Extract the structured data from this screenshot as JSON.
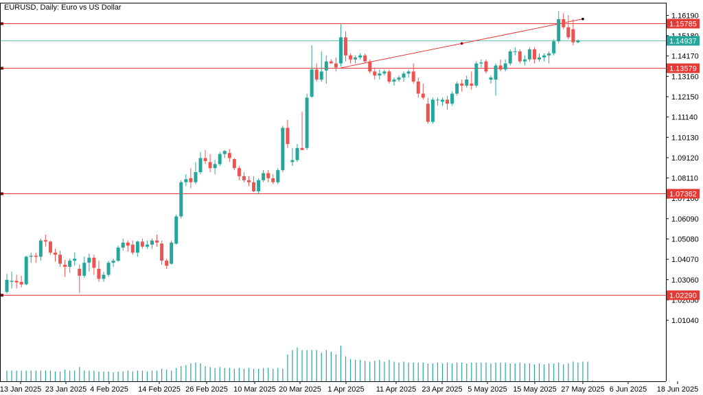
{
  "window": {
    "title": "EURUSD, Daily:  Euro vs US Dollar"
  },
  "chart_data": {
    "type": "candlestick",
    "symbol": "EURUSD",
    "timeframe": "Daily",
    "description": "Euro vs US Dollar",
    "y_range": [
      1.0002,
      1.1651
    ],
    "y_ticks": [
      "1.16190",
      "1.15180",
      "1.14170",
      "1.13160",
      "1.12150",
      "1.11140",
      "1.10130",
      "1.09120",
      "1.08110",
      "1.07100",
      "1.06090",
      "1.05080",
      "1.04070",
      "1.03060",
      "1.02050",
      "1.01040"
    ],
    "x_labels": [
      "13 Jan 2025",
      "23 Jan 2025",
      "4 Feb 2025",
      "14 Feb 2025",
      "26 Feb 2025",
      "10 Mar 2025",
      "20 Mar 2025",
      "1 Apr 2025",
      "11 Apr 2025",
      "23 Apr 2025",
      "5 May 2025",
      "15 May 2025",
      "27 May 2025",
      "6 Jun 2025",
      "18 Jun 2025"
    ],
    "colors": {
      "bull": "#26a69a",
      "bear": "#ef5350",
      "level": "#e53935",
      "current": "#26a69a",
      "volume": "#26a69a",
      "axis": "#000000"
    },
    "current_price": {
      "label": "1.14937",
      "value": 1.14937
    },
    "levels": [
      {
        "label": "1.15785",
        "value": 1.15785
      },
      {
        "label": "1.13579",
        "value": 1.13579
      },
      {
        "label": "1.07362",
        "value": 1.07362
      },
      {
        "label": "1.02290",
        "value": 1.0229
      }
    ],
    "trendline": {
      "from": {
        "bar": 69,
        "price": 1.1358
      },
      "to": {
        "bar": 119,
        "price": 1.1601
      }
    },
    "candles": [
      {
        "o": 1.0245,
        "h": 1.0335,
        "l": 1.0238,
        "c": 1.0305
      },
      {
        "o": 1.0295,
        "h": 1.0345,
        "l": 1.0262,
        "c": 1.03
      },
      {
        "o": 1.03,
        "h": 1.033,
        "l": 1.0262,
        "c": 1.0292
      },
      {
        "o": 1.0295,
        "h": 1.0325,
        "l": 1.0268,
        "c": 1.0282
      },
      {
        "o": 1.0283,
        "h": 1.0425,
        "l": 1.0278,
        "c": 1.042
      },
      {
        "o": 1.042,
        "h": 1.044,
        "l": 1.039,
        "c": 1.0425
      },
      {
        "o": 1.0425,
        "h": 1.044,
        "l": 1.039,
        "c": 1.042
      },
      {
        "o": 1.042,
        "h": 1.051,
        "l": 1.04,
        "c": 1.05
      },
      {
        "o": 1.0502,
        "h": 1.053,
        "l": 1.047,
        "c": 1.0495
      },
      {
        "o": 1.0495,
        "h": 1.05,
        "l": 1.043,
        "c": 1.044
      },
      {
        "o": 1.044,
        "h": 1.046,
        "l": 1.0395,
        "c": 1.043
      },
      {
        "o": 1.043,
        "h": 1.045,
        "l": 1.037,
        "c": 1.0385
      },
      {
        "o": 1.038,
        "h": 1.0405,
        "l": 1.032,
        "c": 1.037
      },
      {
        "o": 1.037,
        "h": 1.041,
        "l": 1.034,
        "c": 1.04
      },
      {
        "o": 1.04,
        "h": 1.044,
        "l": 1.0375,
        "c": 1.041
      },
      {
        "o": 1.036,
        "h": 1.038,
        "l": 1.024,
        "c": 1.0325
      },
      {
        "o": 1.0325,
        "h": 1.042,
        "l": 1.0315,
        "c": 1.039
      },
      {
        "o": 1.039,
        "h": 1.0435,
        "l": 1.0345,
        "c": 1.0415
      },
      {
        "o": 1.0415,
        "h": 1.043,
        "l": 1.033,
        "c": 1.0365
      },
      {
        "o": 1.036,
        "h": 1.04,
        "l": 1.0295,
        "c": 1.031
      },
      {
        "o": 1.031,
        "h": 1.0345,
        "l": 1.0295,
        "c": 1.033
      },
      {
        "o": 1.033,
        "h": 1.04,
        "l": 1.032,
        "c": 1.039
      },
      {
        "o": 1.039,
        "h": 1.041,
        "l": 1.037,
        "c": 1.04
      },
      {
        "o": 1.04,
        "h": 1.0475,
        "l": 1.0395,
        "c": 1.0465
      },
      {
        "o": 1.0465,
        "h": 1.051,
        "l": 1.045,
        "c": 1.049
      },
      {
        "o": 1.049,
        "h": 1.05,
        "l": 1.0445,
        "c": 1.0475
      },
      {
        "o": 1.048,
        "h": 1.05,
        "l": 1.043,
        "c": 1.044
      },
      {
        "o": 1.044,
        "h": 1.05,
        "l": 1.042,
        "c": 1.0495
      },
      {
        "o": 1.0495,
        "h": 1.051,
        "l": 1.046,
        "c": 1.047
      },
      {
        "o": 1.047,
        "h": 1.05,
        "l": 1.046,
        "c": 1.048
      },
      {
        "o": 1.048,
        "h": 1.051,
        "l": 1.046,
        "c": 1.05
      },
      {
        "o": 1.05,
        "h": 1.053,
        "l": 1.047,
        "c": 1.049
      },
      {
        "o": 1.0485,
        "h": 1.05,
        "l": 1.038,
        "c": 1.04
      },
      {
        "o": 1.04,
        "h": 1.041,
        "l": 1.036,
        "c": 1.0375
      },
      {
        "o": 1.0385,
        "h": 1.05,
        "l": 1.038,
        "c": 1.049
      },
      {
        "o": 1.0485,
        "h": 1.063,
        "l": 1.048,
        "c": 1.062
      },
      {
        "o": 1.062,
        "h": 1.08,
        "l": 1.061,
        "c": 1.079
      },
      {
        "o": 1.079,
        "h": 1.083,
        "l": 1.077,
        "c": 1.0805
      },
      {
        "o": 1.081,
        "h": 1.086,
        "l": 1.076,
        "c": 1.079
      },
      {
        "o": 1.079,
        "h": 1.089,
        "l": 1.078,
        "c": 1.084
      },
      {
        "o": 1.084,
        "h": 1.094,
        "l": 1.083,
        "c": 1.091
      },
      {
        "o": 1.091,
        "h": 1.095,
        "l": 1.088,
        "c": 1.0895
      },
      {
        "o": 1.089,
        "h": 1.093,
        "l": 1.084,
        "c": 1.086
      },
      {
        "o": 1.086,
        "h": 1.09,
        "l": 1.083,
        "c": 1.088
      },
      {
        "o": 1.088,
        "h": 1.094,
        "l": 1.087,
        "c": 1.093
      },
      {
        "o": 1.093,
        "h": 1.095,
        "l": 1.091,
        "c": 1.0945
      },
      {
        "o": 1.0935,
        "h": 1.0955,
        "l": 1.089,
        "c": 1.091
      },
      {
        "o": 1.0905,
        "h": 1.091,
        "l": 1.085,
        "c": 1.086
      },
      {
        "o": 1.086,
        "h": 1.087,
        "l": 1.08,
        "c": 1.082
      },
      {
        "o": 1.082,
        "h": 1.084,
        "l": 1.079,
        "c": 1.08
      },
      {
        "o": 1.08,
        "h": 1.082,
        "l": 1.077,
        "c": 1.079
      },
      {
        "o": 1.079,
        "h": 1.082,
        "l": 1.074,
        "c": 1.0745
      },
      {
        "o": 1.0745,
        "h": 1.081,
        "l": 1.0735,
        "c": 1.08
      },
      {
        "o": 1.08,
        "h": 1.085,
        "l": 1.079,
        "c": 1.0835
      },
      {
        "o": 1.0835,
        "h": 1.085,
        "l": 1.079,
        "c": 1.081
      },
      {
        "o": 1.081,
        "h": 1.083,
        "l": 1.078,
        "c": 1.079
      },
      {
        "o": 1.079,
        "h": 1.086,
        "l": 1.078,
        "c": 1.085
      },
      {
        "o": 1.085,
        "h": 1.107,
        "l": 1.084,
        "c": 1.106
      },
      {
        "o": 1.106,
        "h": 1.11,
        "l": 1.096,
        "c": 1.098
      },
      {
        "o": 1.089,
        "h": 1.096,
        "l": 1.087,
        "c": 1.09
      },
      {
        "o": 1.09,
        "h": 1.098,
        "l": 1.089,
        "c": 1.096
      },
      {
        "o": 1.096,
        "h": 1.114,
        "l": 1.095,
        "c": 1.095
      },
      {
        "o": 1.096,
        "h": 1.123,
        "l": 1.095,
        "c": 1.121
      },
      {
        "o": 1.1215,
        "h": 1.147,
        "l": 1.121,
        "c": 1.135
      },
      {
        "o": 1.135,
        "h": 1.138,
        "l": 1.129,
        "c": 1.13
      },
      {
        "o": 1.13,
        "h": 1.144,
        "l": 1.129,
        "c": 1.134
      },
      {
        "o": 1.1345,
        "h": 1.142,
        "l": 1.128,
        "c": 1.139
      },
      {
        "o": 1.139,
        "h": 1.14,
        "l": 1.138,
        "c": 1.138
      },
      {
        "o": 1.138,
        "h": 1.141,
        "l": 1.134,
        "c": 1.136
      },
      {
        "o": 1.138,
        "h": 1.1575,
        "l": 1.1365,
        "c": 1.151
      },
      {
        "o": 1.151,
        "h": 1.154,
        "l": 1.139,
        "c": 1.142
      },
      {
        "o": 1.142,
        "h": 1.143,
        "l": 1.138,
        "c": 1.14
      },
      {
        "o": 1.14,
        "h": 1.142,
        "l": 1.138,
        "c": 1.141
      },
      {
        "o": 1.141,
        "h": 1.143,
        "l": 1.14,
        "c": 1.142
      },
      {
        "o": 1.142,
        "h": 1.143,
        "l": 1.138,
        "c": 1.139
      },
      {
        "o": 1.139,
        "h": 1.14,
        "l": 1.133,
        "c": 1.134
      },
      {
        "o": 1.134,
        "h": 1.136,
        "l": 1.13,
        "c": 1.132
      },
      {
        "o": 1.132,
        "h": 1.135,
        "l": 1.13,
        "c": 1.133
      },
      {
        "o": 1.133,
        "h": 1.135,
        "l": 1.132,
        "c": 1.134
      },
      {
        "o": 1.134,
        "h": 1.135,
        "l": 1.128,
        "c": 1.129
      },
      {
        "o": 1.129,
        "h": 1.131,
        "l": 1.127,
        "c": 1.13
      },
      {
        "o": 1.13,
        "h": 1.132,
        "l": 1.129,
        "c": 1.131
      },
      {
        "o": 1.131,
        "h": 1.134,
        "l": 1.129,
        "c": 1.133
      },
      {
        "o": 1.133,
        "h": 1.135,
        "l": 1.131,
        "c": 1.134
      },
      {
        "o": 1.134,
        "h": 1.138,
        "l": 1.128,
        "c": 1.129
      },
      {
        "o": 1.129,
        "h": 1.131,
        "l": 1.121,
        "c": 1.123
      },
      {
        "o": 1.123,
        "h": 1.128,
        "l": 1.12,
        "c": 1.121
      },
      {
        "o": 1.118,
        "h": 1.121,
        "l": 1.108,
        "c": 1.109
      },
      {
        "o": 1.109,
        "h": 1.121,
        "l": 1.108,
        "c": 1.12
      },
      {
        "o": 1.12,
        "h": 1.121,
        "l": 1.117,
        "c": 1.12
      },
      {
        "o": 1.119,
        "h": 1.121,
        "l": 1.117,
        "c": 1.12
      },
      {
        "o": 1.12,
        "h": 1.122,
        "l": 1.115,
        "c": 1.118
      },
      {
        "o": 1.118,
        "h": 1.124,
        "l": 1.117,
        "c": 1.123
      },
      {
        "o": 1.123,
        "h": 1.129,
        "l": 1.122,
        "c": 1.128
      },
      {
        "o": 1.128,
        "h": 1.13,
        "l": 1.124,
        "c": 1.127
      },
      {
        "o": 1.127,
        "h": 1.132,
        "l": 1.126,
        "c": 1.13
      },
      {
        "o": 1.128,
        "h": 1.134,
        "l": 1.125,
        "c": 1.127
      },
      {
        "o": 1.127,
        "h": 1.139,
        "l": 1.126,
        "c": 1.138
      },
      {
        "o": 1.138,
        "h": 1.14,
        "l": 1.136,
        "c": 1.1385
      },
      {
        "o": 1.139,
        "h": 1.14,
        "l": 1.133,
        "c": 1.134
      },
      {
        "o": 1.13,
        "h": 1.132,
        "l": 1.128,
        "c": 1.131
      },
      {
        "o": 1.13,
        "h": 1.138,
        "l": 1.122,
        "c": 1.137
      },
      {
        "o": 1.137,
        "h": 1.14,
        "l": 1.134,
        "c": 1.135
      },
      {
        "o": 1.135,
        "h": 1.14,
        "l": 1.134,
        "c": 1.138
      },
      {
        "o": 1.138,
        "h": 1.145,
        "l": 1.137,
        "c": 1.144
      },
      {
        "o": 1.144,
        "h": 1.146,
        "l": 1.142,
        "c": 1.144
      },
      {
        "o": 1.144,
        "h": 1.145,
        "l": 1.138,
        "c": 1.139
      },
      {
        "o": 1.139,
        "h": 1.142,
        "l": 1.137,
        "c": 1.14
      },
      {
        "o": 1.14,
        "h": 1.146,
        "l": 1.139,
        "c": 1.145
      },
      {
        "o": 1.145,
        "h": 1.146,
        "l": 1.138,
        "c": 1.14
      },
      {
        "o": 1.14,
        "h": 1.143,
        "l": 1.139,
        "c": 1.141
      },
      {
        "o": 1.141,
        "h": 1.143,
        "l": 1.139,
        "c": 1.142
      },
      {
        "o": 1.142,
        "h": 1.144,
        "l": 1.138,
        "c": 1.143
      },
      {
        "o": 1.143,
        "h": 1.15,
        "l": 1.142,
        "c": 1.149
      },
      {
        "o": 1.149,
        "h": 1.164,
        "l": 1.148,
        "c": 1.16
      },
      {
        "o": 1.16,
        "h": 1.163,
        "l": 1.155,
        "c": 1.156
      },
      {
        "o": 1.156,
        "h": 1.162,
        "l": 1.15,
        "c": 1.151
      },
      {
        "o": 1.155,
        "h": 1.16,
        "l": 1.147,
        "c": 1.1485
      },
      {
        "o": 1.1485,
        "h": 1.15,
        "l": 1.148,
        "c": 1.1494
      }
    ],
    "volume": [
      0.12,
      0.12,
      0.12,
      0.12,
      0.12,
      0.12,
      0.12,
      0.12,
      0.12,
      0.12,
      0.11,
      0.11,
      0.13,
      0.12,
      0.12,
      0.16,
      0.12,
      0.12,
      0.12,
      0.11,
      0.11,
      0.11,
      0.1,
      0.11,
      0.11,
      0.12,
      0.11,
      0.12,
      0.12,
      0.11,
      0.12,
      0.12,
      0.14,
      0.13,
      0.12,
      0.15,
      0.17,
      0.18,
      0.2,
      0.21,
      0.2,
      0.17,
      0.16,
      0.15,
      0.16,
      0.15,
      0.15,
      0.14,
      0.15,
      0.14,
      0.15,
      0.14,
      0.14,
      0.15,
      0.15,
      0.14,
      0.15,
      0.14,
      0.3,
      0.35,
      0.38,
      0.35,
      0.35,
      0.35,
      0.35,
      0.32,
      0.35,
      0.33,
      0.3,
      0.4,
      0.28,
      0.25,
      0.24,
      0.24,
      0.23,
      0.22,
      0.23,
      0.24,
      0.22,
      0.24,
      0.22,
      0.21,
      0.22,
      0.21,
      0.21,
      0.21,
      0.21,
      0.2,
      0.2,
      0.21,
      0.2,
      0.21,
      0.2,
      0.21,
      0.21,
      0.2,
      0.21,
      0.21,
      0.21,
      0.21,
      0.2,
      0.21,
      0.21,
      0.21,
      0.2,
      0.2,
      0.21,
      0.2,
      0.2,
      0.19,
      0.2,
      0.19,
      0.2,
      0.2,
      0.21,
      0.19,
      0.2,
      0.22,
      0.21,
      0.22,
      0.22,
      0.01
    ]
  }
}
